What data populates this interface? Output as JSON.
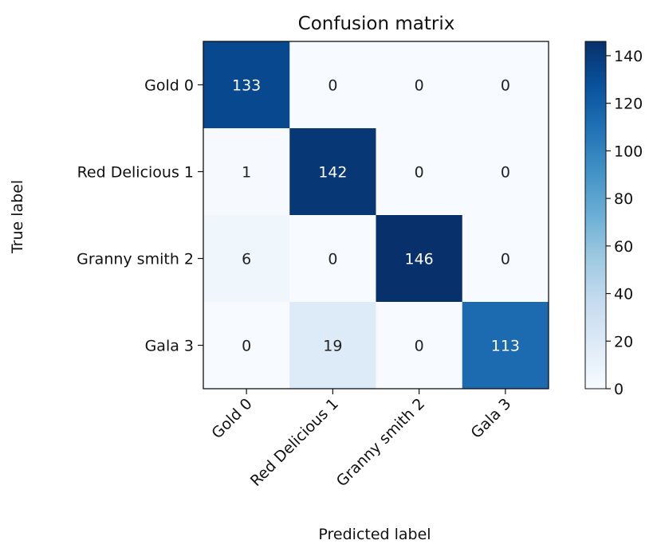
{
  "chart_data": {
    "type": "heatmap",
    "title": "Confusion matrix",
    "xlabel": "Predicted label",
    "ylabel": "True label",
    "row_labels": [
      "Gold 0",
      "Red Delicious 1",
      "Granny smith 2",
      "Gala 3"
    ],
    "col_labels": [
      "Gold 0",
      "Red Delicious 1",
      "Granny smith 2",
      "Gala 3"
    ],
    "matrix": [
      [
        133,
        0,
        0,
        0
      ],
      [
        1,
        142,
        0,
        0
      ],
      [
        6,
        0,
        146,
        0
      ],
      [
        0,
        19,
        0,
        113
      ]
    ],
    "colorbar": {
      "range": [
        0,
        146
      ],
      "ticks": [
        0,
        20,
        40,
        60,
        80,
        100,
        120,
        140
      ]
    },
    "colormap": "Blues",
    "colors": {
      "low": "#f7fbff",
      "high": "#08306b",
      "text_light": "#ffffff",
      "text_dark": "#222222"
    }
  }
}
